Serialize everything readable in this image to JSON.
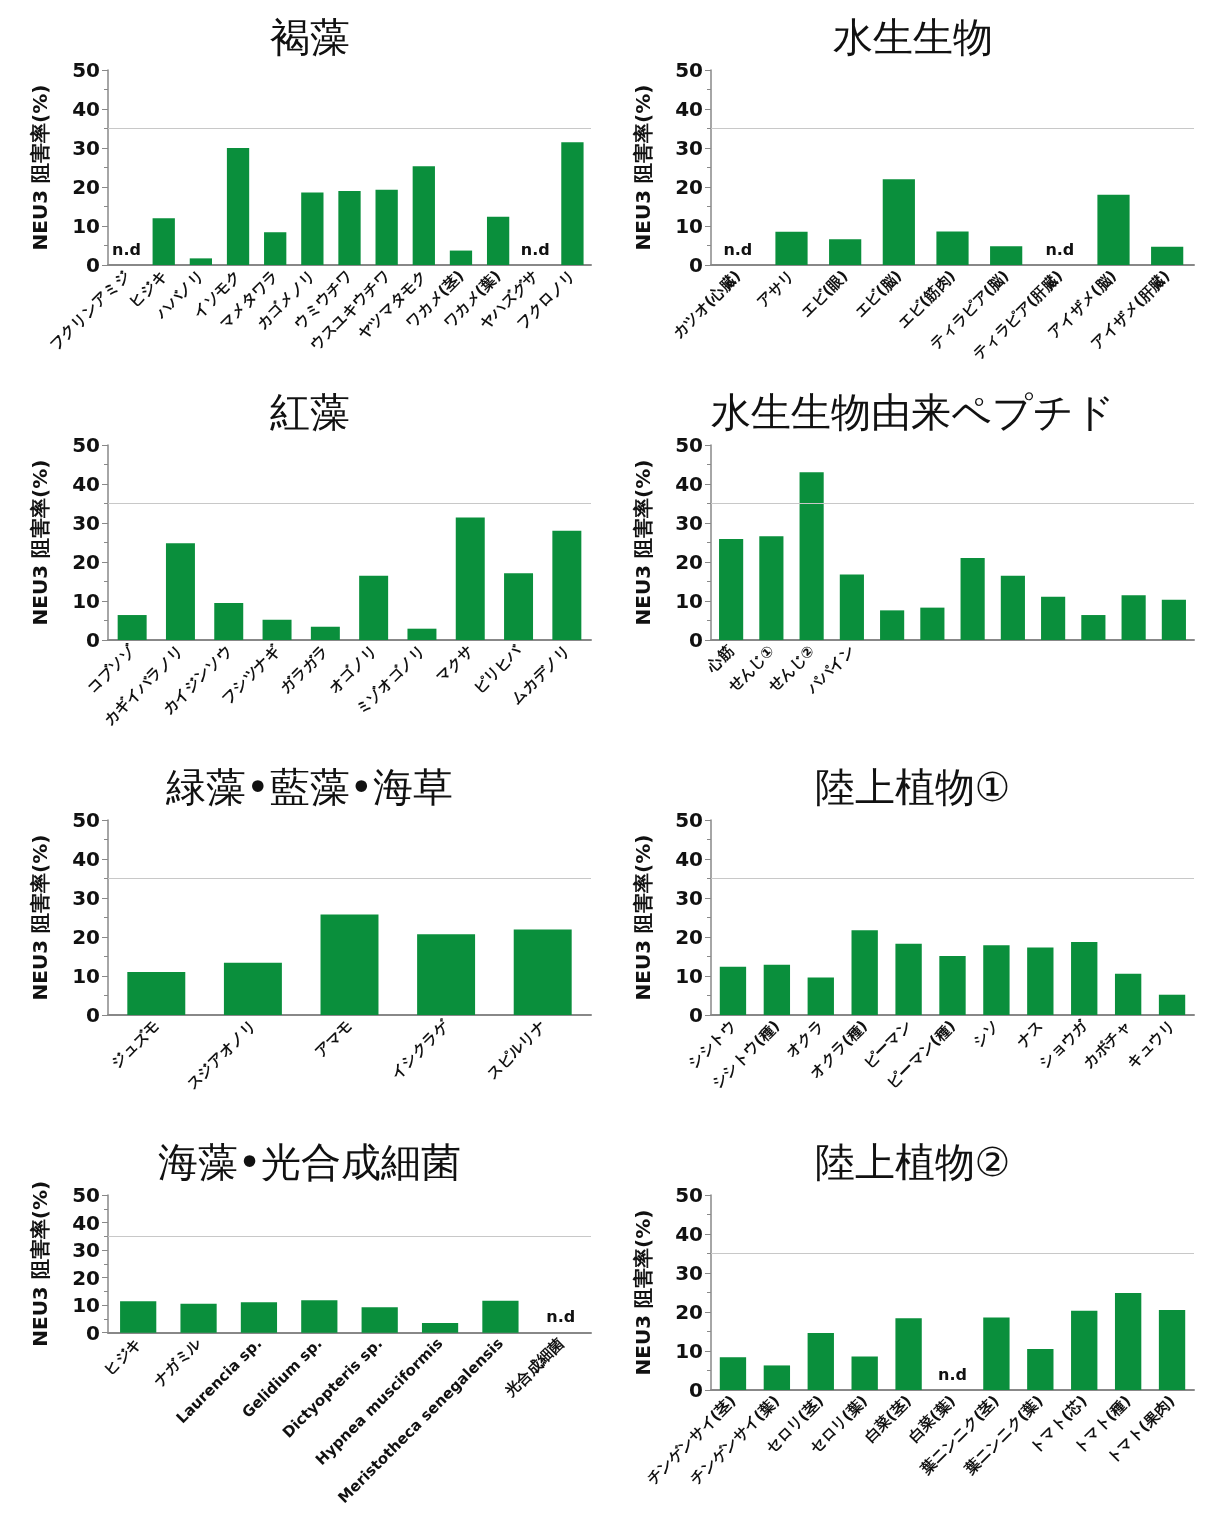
{
  "chart_data": [
    {
      "type": "bar",
      "title": "褐藻",
      "ylabel": "NEU3 阻害率(%)",
      "categories": [
        "フクリンアミジ",
        "ヒジキ",
        "ハバノリ",
        "イソモク",
        "マメタワラ",
        "カゴメノリ",
        "ウミウチワ",
        "ウスユキウチワ",
        "ヤツマタモク",
        "ワカメ(茎)",
        "ワカメ(葉)",
        "ヤハズグサ",
        "フクロノリ"
      ],
      "values": [
        null,
        12,
        1.7,
        30,
        8.4,
        18.6,
        19,
        19.3,
        25.3,
        3.7,
        12.4,
        null,
        31.5
      ],
      "value_labels": [
        "n.d",
        null,
        null,
        null,
        null,
        null,
        null,
        null,
        null,
        null,
        null,
        "n.d",
        null
      ],
      "color": "#0a8f3c",
      "ylim": [
        0,
        50
      ],
      "yticks": [
        0,
        10,
        20,
        30,
        40,
        50
      ],
      "grid": false,
      "ref_lines": [
        {
          "axis": "y",
          "value": 35,
          "color": "#c8c8c8"
        }
      ]
    },
    {
      "type": "bar",
      "title": "水生生物",
      "ylabel": "NEU3 阻害率(%)",
      "categories": [
        "カツオ(心臓)",
        "アサリ",
        "エビ(眼)",
        "エビ(脳)",
        "エビ(筋肉)",
        "ティラピア(脳)",
        "ティラピア(肝臓)",
        "アイザメ(脳)",
        "アイザメ(肝臓)"
      ],
      "values": [
        null,
        8.5,
        6.6,
        22,
        8.6,
        4.8,
        null,
        18,
        4.7
      ],
      "value_labels": [
        "n.d",
        null,
        null,
        null,
        null,
        null,
        "n.d",
        null,
        null
      ],
      "color": "#0a8f3c",
      "ylim": [
        0,
        50
      ],
      "yticks": [
        0,
        10,
        20,
        30,
        40,
        50
      ],
      "grid": false,
      "ref_lines": [
        {
          "axis": "y",
          "value": 35,
          "color": "#c8c8c8"
        }
      ]
    },
    {
      "type": "bar",
      "title": "紅藻",
      "ylabel": "NEU3 阻害率(%)",
      "categories": [
        "コブソゾ",
        "カギイバラノリ",
        "カイジンソウ",
        "フシツナギ",
        "ガラガラ",
        "オゴノリ",
        "ミゾオゴノリ",
        "マクサ",
        "ピリヒバ",
        "ムカデノリ"
      ],
      "values": [
        6.4,
        24.8,
        9.5,
        5.2,
        3.4,
        16.5,
        2.9,
        31.4,
        17.1,
        28
      ],
      "color": "#0a8f3c",
      "ylim": [
        0,
        50
      ],
      "yticks": [
        0,
        10,
        20,
        30,
        40,
        50
      ],
      "grid": false,
      "ref_lines": [
        {
          "axis": "y",
          "value": 35,
          "color": "#c8c8c8"
        }
      ]
    },
    {
      "type": "bar",
      "title": "水生生物由来ペプチド",
      "ylabel": "NEU3 阻害率(%)",
      "categories": [
        "心筋",
        "せんじ①",
        "せんじ②",
        "パパイン",
        null,
        null,
        null,
        null,
        null,
        null,
        null,
        null
      ],
      "values": [
        25.9,
        26.6,
        43,
        16.8,
        7.6,
        8.3,
        21,
        16.5,
        11.1,
        6.4,
        11.5,
        10.3
      ],
      "color": "#0a8f3c",
      "ylim": [
        0,
        50
      ],
      "yticks": [
        0,
        10,
        20,
        30,
        40,
        50
      ],
      "grid": false,
      "ref_lines": [
        {
          "axis": "y",
          "value": 35,
          "color": "#c8c8c8"
        }
      ]
    },
    {
      "type": "bar",
      "title": "緑藻•藍藻•海草",
      "ylabel": "NEU3 阻害率(%)",
      "categories": [
        "ジュズモ",
        "スジアオノリ",
        "アマモ",
        "イシクラゲ",
        "スピルリナ"
      ],
      "values": [
        11,
        13.4,
        25.8,
        20.7,
        21.9
      ],
      "color": "#0a8f3c",
      "ylim": [
        0,
        50
      ],
      "yticks": [
        0,
        10,
        20,
        30,
        40,
        50
      ],
      "grid": false,
      "ref_lines": [
        {
          "axis": "y",
          "value": 35,
          "color": "#c8c8c8"
        }
      ]
    },
    {
      "type": "bar",
      "title": "陸上植物①",
      "ylabel": "NEU3 阻害率(%)",
      "categories": [
        "シシトウ",
        "シシトウ(種)",
        "オクラ",
        "オクラ(種)",
        "ピーマン",
        "ピーマン(種)",
        "シソ",
        "ナス",
        "ショウガ",
        "カボチャ",
        "キュウリ"
      ],
      "values": [
        12.4,
        12.9,
        9.6,
        21.7,
        18.3,
        15.1,
        17.9,
        17.3,
        18.7,
        10.6,
        5.2
      ],
      "color": "#0a8f3c",
      "ylim": [
        0,
        50
      ],
      "yticks": [
        0,
        10,
        20,
        30,
        40,
        50
      ],
      "grid": false,
      "ref_lines": [
        {
          "axis": "y",
          "value": 35,
          "color": "#c8c8c8"
        }
      ]
    },
    {
      "type": "bar",
      "title": "海藻•光合成細菌",
      "ylabel": "NEU3 阻害率(%)",
      "categories": [
        "ヒジキ",
        "ナガミル",
        "Laurencia sp.",
        "Gelidium sp.",
        "Dictyopteris sp.",
        "Hypnea musciformis",
        "Meristotheca senegalensis",
        "光合成細菌"
      ],
      "values": [
        11.4,
        10.5,
        11.1,
        11.8,
        9.2,
        3.5,
        11.6,
        null
      ],
      "value_labels": [
        null,
        null,
        null,
        null,
        null,
        null,
        null,
        "n.d"
      ],
      "color": "#0a8f3c",
      "ylim": [
        0,
        50
      ],
      "yticks": [
        0,
        10,
        20,
        30,
        40,
        50
      ],
      "grid": false,
      "ref_lines": [
        {
          "axis": "y",
          "value": 35,
          "color": "#c8c8c8"
        }
      ]
    },
    {
      "type": "bar",
      "title": "陸上植物②",
      "ylabel": "NEU3 阻害率(%)",
      "categories": [
        "チンゲンサイ(茎)",
        "チンゲンサイ(葉)",
        "セロリ(茎)",
        "セロリ(葉)",
        "白菜(茎)",
        "白菜(葉)",
        "葉ニンニク(茎)",
        "葉ニンニク(葉)",
        "トマト(芯)",
        "トマト(種)",
        "トマト(果肉)"
      ],
      "values": [
        8.4,
        6.3,
        14.6,
        8.6,
        18.4,
        null,
        18.6,
        10.5,
        20.3,
        24.9,
        20.5
      ],
      "value_labels": [
        null,
        null,
        null,
        null,
        null,
        "n.d",
        null,
        null,
        null,
        null,
        null
      ],
      "color": "#0a8f3c",
      "ylim": [
        0,
        50
      ],
      "yticks": [
        0,
        10,
        20,
        30,
        40,
        50
      ],
      "grid": false,
      "ref_lines": [
        {
          "axis": "y",
          "value": 35,
          "color": "#c8c8c8"
        }
      ]
    }
  ]
}
